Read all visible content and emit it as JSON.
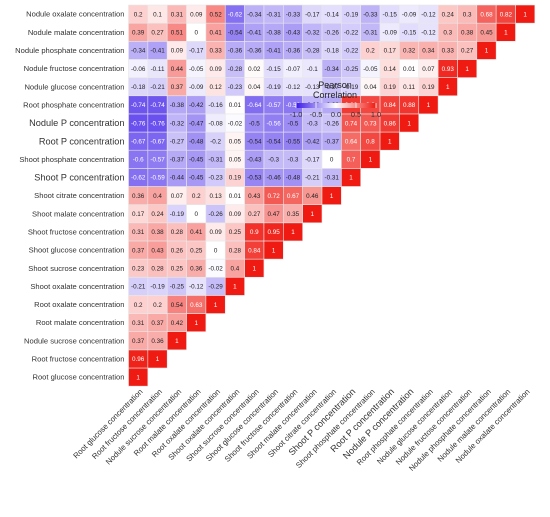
{
  "chart_data": {
    "type": "heatmap",
    "title": "",
    "legend": {
      "title": "Pearson Correlation",
      "tick_labels": [
        "-1.0",
        "-0.5",
        "0.0",
        "0.5",
        "1.0"
      ],
      "range": [
        -1,
        1
      ],
      "placement": "top-center"
    },
    "colors": {
      "negative": "#3b19e8",
      "zero": "#ffffff",
      "positive": "#ef1a12",
      "cell_border": "#e8e8e8"
    },
    "grid": false,
    "variables": [
      "Root glucose concentration",
      "Root fructose concentration",
      "Nodule sucrose concentration",
      "Root malate concentration",
      "Root oxalate concentration",
      "Shoot oxalate concentration",
      "Shoot sucrose concentration",
      "Shoot glucose concentration",
      "Shoot fructose concentration",
      "Shoot malate concentration",
      "Shoot citrate concentration",
      "Shoot P concentration",
      "Shoot phosphate concentration",
      "Root P concentration",
      "Nodule P concentration",
      "Root phosphate concentration",
      "Nodule glucose concentration",
      "Nodule fructose concentration",
      "Nodule phosphate concentration",
      "Nodule malate concentration",
      "Nodule oxalate concentration"
    ],
    "rows": [
      [
        1
      ],
      [
        0.96,
        1
      ],
      [
        0.37,
        0.36,
        1
      ],
      [
        0.31,
        0.37,
        0.42,
        1
      ],
      [
        0.2,
        0.2,
        0.54,
        0.63,
        1
      ],
      [
        -0.21,
        -0.19,
        -0.25,
        -0.12,
        -0.29,
        1
      ],
      [
        0.23,
        0.28,
        0.25,
        0.36,
        -0.02,
        0.4,
        1
      ],
      [
        0.37,
        0.43,
        0.26,
        0.25,
        0,
        0.28,
        0.84,
        1
      ],
      [
        0.31,
        0.38,
        0.28,
        0.41,
        0.09,
        0.25,
        0.9,
        0.95,
        1
      ],
      [
        0.17,
        0.24,
        -0.19,
        0,
        -0.26,
        0.09,
        0.27,
        0.47,
        0.35,
        1
      ],
      [
        0.36,
        0.4,
        0.07,
        0.2,
        0.13,
        0.01,
        0.43,
        0.72,
        0.67,
        0.46,
        1
      ],
      [
        -0.62,
        -0.59,
        -0.44,
        -0.45,
        -0.23,
        0.19,
        -0.53,
        -0.46,
        -0.48,
        -0.21,
        -0.31,
        1
      ],
      [
        -0.6,
        -0.57,
        -0.37,
        -0.45,
        -0.31,
        0.05,
        -0.43,
        -0.3,
        -0.3,
        -0.17,
        0,
        0.7,
        1
      ],
      [
        -0.67,
        -0.67,
        -0.27,
        -0.48,
        -0.2,
        0.05,
        -0.54,
        -0.54,
        -0.55,
        -0.42,
        -0.37,
        0.64,
        0.8,
        1
      ],
      [
        -0.76,
        -0.76,
        -0.32,
        -0.47,
        -0.08,
        -0.02,
        -0.5,
        -0.56,
        -0.5,
        -0.3,
        -0.26,
        0.74,
        0.73,
        0.86,
        1
      ],
      [
        -0.74,
        -0.74,
        -0.38,
        -0.42,
        -0.16,
        0.01,
        -0.64,
        -0.57,
        -0.59,
        -0.32,
        -0.38,
        0.86,
        0.8,
        0.84,
        0.88,
        1
      ],
      [
        -0.18,
        -0.21,
        0.37,
        -0.09,
        0.12,
        -0.23,
        0.04,
        -0.19,
        -0.12,
        -0.13,
        -0.27,
        -0.19,
        0.04,
        0.19,
        0.11,
        0.19,
        1
      ],
      [
        -0.06,
        -0.11,
        0.44,
        -0.05,
        0.09,
        -0.28,
        0.02,
        -0.15,
        -0.07,
        -0.1,
        -0.34,
        -0.25,
        -0.05,
        0.14,
        0.01,
        0.07,
        0.93,
        1
      ],
      [
        -0.34,
        -0.41,
        0.09,
        -0.17,
        0.33,
        -0.36,
        -0.36,
        -0.41,
        -0.36,
        -0.28,
        -0.18,
        -0.22,
        0.2,
        0.17,
        0.32,
        0.34,
        0.33,
        0.27,
        1
      ],
      [
        0.39,
        0.27,
        0.51,
        0,
        0.41,
        -0.54,
        -0.41,
        -0.38,
        -0.43,
        -0.32,
        -0.26,
        -0.22,
        -0.31,
        -0.09,
        -0.15,
        -0.12,
        0.3,
        0.38,
        0.45,
        1
      ],
      [
        0.2,
        0.1,
        0.31,
        0.09,
        0.52,
        -0.62,
        -0.34,
        -0.31,
        -0.33,
        -0.17,
        -0.14,
        -0.19,
        -0.33,
        -0.15,
        -0.09,
        -0.12,
        0.24,
        0.3,
        0.68,
        0.82,
        1
      ]
    ]
  }
}
